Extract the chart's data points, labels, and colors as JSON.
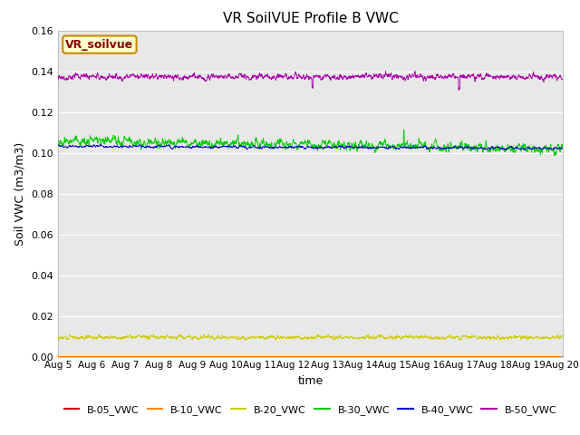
{
  "title": "VR SoilVUE Profile B VWC",
  "xlabel": "time",
  "ylabel": "Soil VWC (m3/m3)",
  "ylim": [
    0.0,
    0.16
  ],
  "n_points": 2160,
  "series": [
    {
      "label": "B-05_VWC",
      "color": "#cc0000"
    },
    {
      "label": "B-10_VWC",
      "color": "#ff8800"
    },
    {
      "label": "B-20_VWC",
      "color": "#cccc00"
    },
    {
      "label": "B-30_VWC",
      "color": "#00cc00"
    },
    {
      "label": "B-40_VWC",
      "color": "#0000cc"
    },
    {
      "label": "B-50_VWC",
      "color": "#aa00aa"
    }
  ],
  "legend_box_label": "VR_soilvue",
  "legend_box_facecolor": "#ffffcc",
  "legend_box_edgecolor": "#cc8800",
  "legend_box_textcolor": "#8b0000",
  "bg_color": "#e8e8e8",
  "tick_labels": [
    "Aug 5",
    "Aug 6",
    "Aug 7",
    "Aug 8",
    "Aug 9",
    "Aug 10",
    "Aug 11",
    "Aug 12",
    "Aug 13",
    "Aug 14",
    "Aug 15",
    "Aug 16",
    "Aug 17",
    "Aug 18",
    "Aug 19",
    "Aug 20"
  ],
  "grid_color": "white",
  "linewidth": 0.6
}
